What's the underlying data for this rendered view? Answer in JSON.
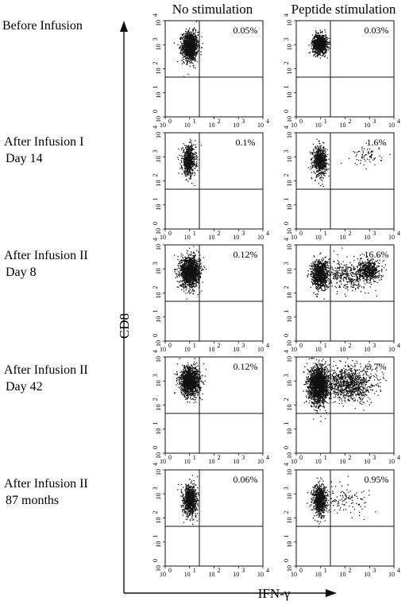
{
  "chart_data": {
    "type": "scatter",
    "description_axes": {
      "x_scale": "log",
      "y_scale": "log"
    },
    "columns": [
      "No stimulation",
      "Peptide stimulation"
    ],
    "rows": [
      {
        "label_lines": [
          "Before Infusion"
        ],
        "percents": [
          "0.05%",
          "0.03%"
        ]
      },
      {
        "label_lines": [
          "After Infusion I",
          "Day 14"
        ],
        "percents": [
          "0.1%",
          "1.6%"
        ]
      },
      {
        "label_lines": [
          "After Infusion II",
          "Day 8"
        ],
        "percents": [
          "0.12%",
          "16.6%"
        ]
      },
      {
        "label_lines": [
          "After Infusion II",
          "Day 42"
        ],
        "percents": [
          "0.12%",
          "3.7%"
        ]
      },
      {
        "label_lines": [
          "After Infusion II",
          "87 months"
        ],
        "percents": [
          "0.06%",
          "0.95%"
        ]
      }
    ],
    "xlabel": "IFN-γ",
    "ylabel": "CD8",
    "xlim": [
      1,
      10000
    ],
    "ylim": [
      1,
      10000
    ],
    "x_ticks": [
      {
        "base": "10",
        "exp": "0"
      },
      {
        "base": "10",
        "exp": "1"
      },
      {
        "base": "10",
        "exp": "2"
      },
      {
        "base": "10",
        "exp": "3"
      },
      {
        "base": "10",
        "exp": "4"
      }
    ],
    "y_ticks": [
      {
        "base": "10",
        "exp": "0"
      },
      {
        "base": "10",
        "exp": "1"
      },
      {
        "base": "10",
        "exp": "2"
      },
      {
        "base": "10",
        "exp": "3"
      },
      {
        "base": "10",
        "exp": "4"
      }
    ],
    "quadrant_gate": {
      "x": 25,
      "y": 45
    },
    "populations": [
      [
        [
          {
            "mx": 1.0,
            "my": 2.95,
            "sx": 0.16,
            "sy": 0.3,
            "n": 1300
          }
        ],
        [
          {
            "mx": 0.95,
            "my": 3.05,
            "sx": 0.15,
            "sy": 0.2,
            "n": 1000
          }
        ]
      ],
      [
        [
          {
            "mx": 0.95,
            "my": 2.85,
            "sx": 0.14,
            "sy": 0.3,
            "n": 700
          }
        ],
        [
          {
            "mx": 0.95,
            "my": 2.85,
            "sx": 0.14,
            "sy": 0.3,
            "n": 650
          },
          {
            "mx": 2.9,
            "my": 3.05,
            "sx": 0.3,
            "sy": 0.2,
            "n": 70
          }
        ]
      ],
      [
        [
          {
            "mx": 1.0,
            "my": 2.9,
            "sx": 0.2,
            "sy": 0.32,
            "n": 1500
          }
        ],
        [
          {
            "mx": 0.95,
            "my": 2.8,
            "sx": 0.17,
            "sy": 0.3,
            "n": 900
          },
          {
            "mx": 2.05,
            "my": 2.75,
            "sx": 0.45,
            "sy": 0.3,
            "n": 380
          },
          {
            "mx": 2.95,
            "my": 2.95,
            "sx": 0.22,
            "sy": 0.22,
            "n": 520
          }
        ]
      ],
      [
        [
          {
            "mx": 1.0,
            "my": 3.0,
            "sx": 0.2,
            "sy": 0.3,
            "n": 1400
          }
        ],
        [
          {
            "mx": 0.9,
            "my": 2.85,
            "sx": 0.2,
            "sy": 0.38,
            "n": 2000
          },
          {
            "mx": 2.15,
            "my": 2.9,
            "sx": 0.5,
            "sy": 0.35,
            "n": 1000
          }
        ]
      ],
      [
        [
          {
            "mx": 1.0,
            "my": 2.75,
            "sx": 0.14,
            "sy": 0.32,
            "n": 900
          }
        ],
        [
          {
            "mx": 0.95,
            "my": 2.75,
            "sx": 0.14,
            "sy": 0.32,
            "n": 850
          },
          {
            "mx": 2.1,
            "my": 2.8,
            "sx": 0.5,
            "sy": 0.28,
            "n": 110
          }
        ]
      ]
    ]
  }
}
